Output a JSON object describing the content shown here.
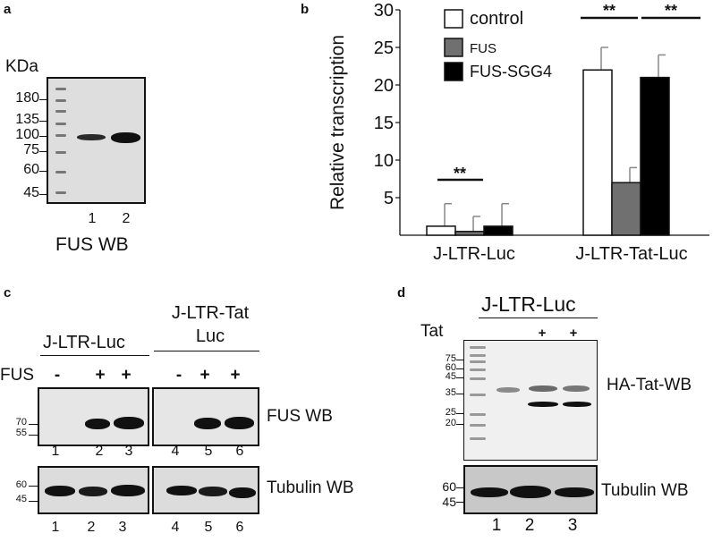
{
  "panel_a": {
    "letter": "a",
    "unit": "KDa",
    "mw": [
      "180",
      "135",
      "100",
      "75",
      "60",
      "45"
    ],
    "lanes": [
      "1",
      "2"
    ],
    "caption": "FUS WB"
  },
  "panel_b": {
    "letter": "b",
    "chart_data": {
      "type": "bar",
      "ylabel": "Relative transcription",
      "yticks": [
        "5",
        "10",
        "15",
        "20",
        "25",
        "30"
      ],
      "ylim": [
        0,
        30
      ],
      "categories": [
        "J-LTR-Luc",
        "J-LTR-Tat-Luc"
      ],
      "series": [
        {
          "name": "control",
          "values": [
            1.2,
            22
          ],
          "errors": [
            3,
            3
          ],
          "color": "#ffffff"
        },
        {
          "name": "FUS",
          "values": [
            0.5,
            7
          ],
          "errors": [
            2,
            2
          ],
          "color": "#707070"
        },
        {
          "name": "FUS-SGG4",
          "values": [
            1.2,
            21
          ],
          "errors": [
            3,
            3
          ],
          "color": "#000000"
        }
      ],
      "significance": [
        "**",
        "**",
        "**"
      ],
      "legend": "top-center"
    }
  },
  "panel_c": {
    "letter": "c",
    "group1": "J-LTR-Luc",
    "group2_line1": "J-LTR-Tat",
    "group2_line2": "Luc",
    "row_label": "FUS",
    "signs": [
      "-",
      "+",
      "+",
      "-",
      "+",
      "+"
    ],
    "top_mw": [
      "70",
      "55"
    ],
    "top_lanes": [
      "1",
      "2",
      "3",
      "4",
      "5",
      "6"
    ],
    "top_wb": "FUS WB",
    "bottom_mw": [
      "60",
      "45"
    ],
    "bottom_lanes": [
      "1",
      "2",
      "3",
      "4",
      "5",
      "6"
    ],
    "bottom_wb": "Tubulin WB"
  },
  "panel_d": {
    "letter": "d",
    "title": "J-LTR-Luc",
    "row_label": "Tat",
    "signs": [
      "+",
      "+"
    ],
    "top_mw": [
      "75",
      "60",
      "45",
      "35",
      "25",
      "20"
    ],
    "top_lanes": [
      "1",
      "2",
      "3"
    ],
    "top_wb": "HA-Tat-WB",
    "bottom_mw": [
      "60",
      "45"
    ],
    "bottom_lanes": [
      "1",
      "2",
      "3"
    ],
    "bottom_wb": "Tubulin WB"
  }
}
